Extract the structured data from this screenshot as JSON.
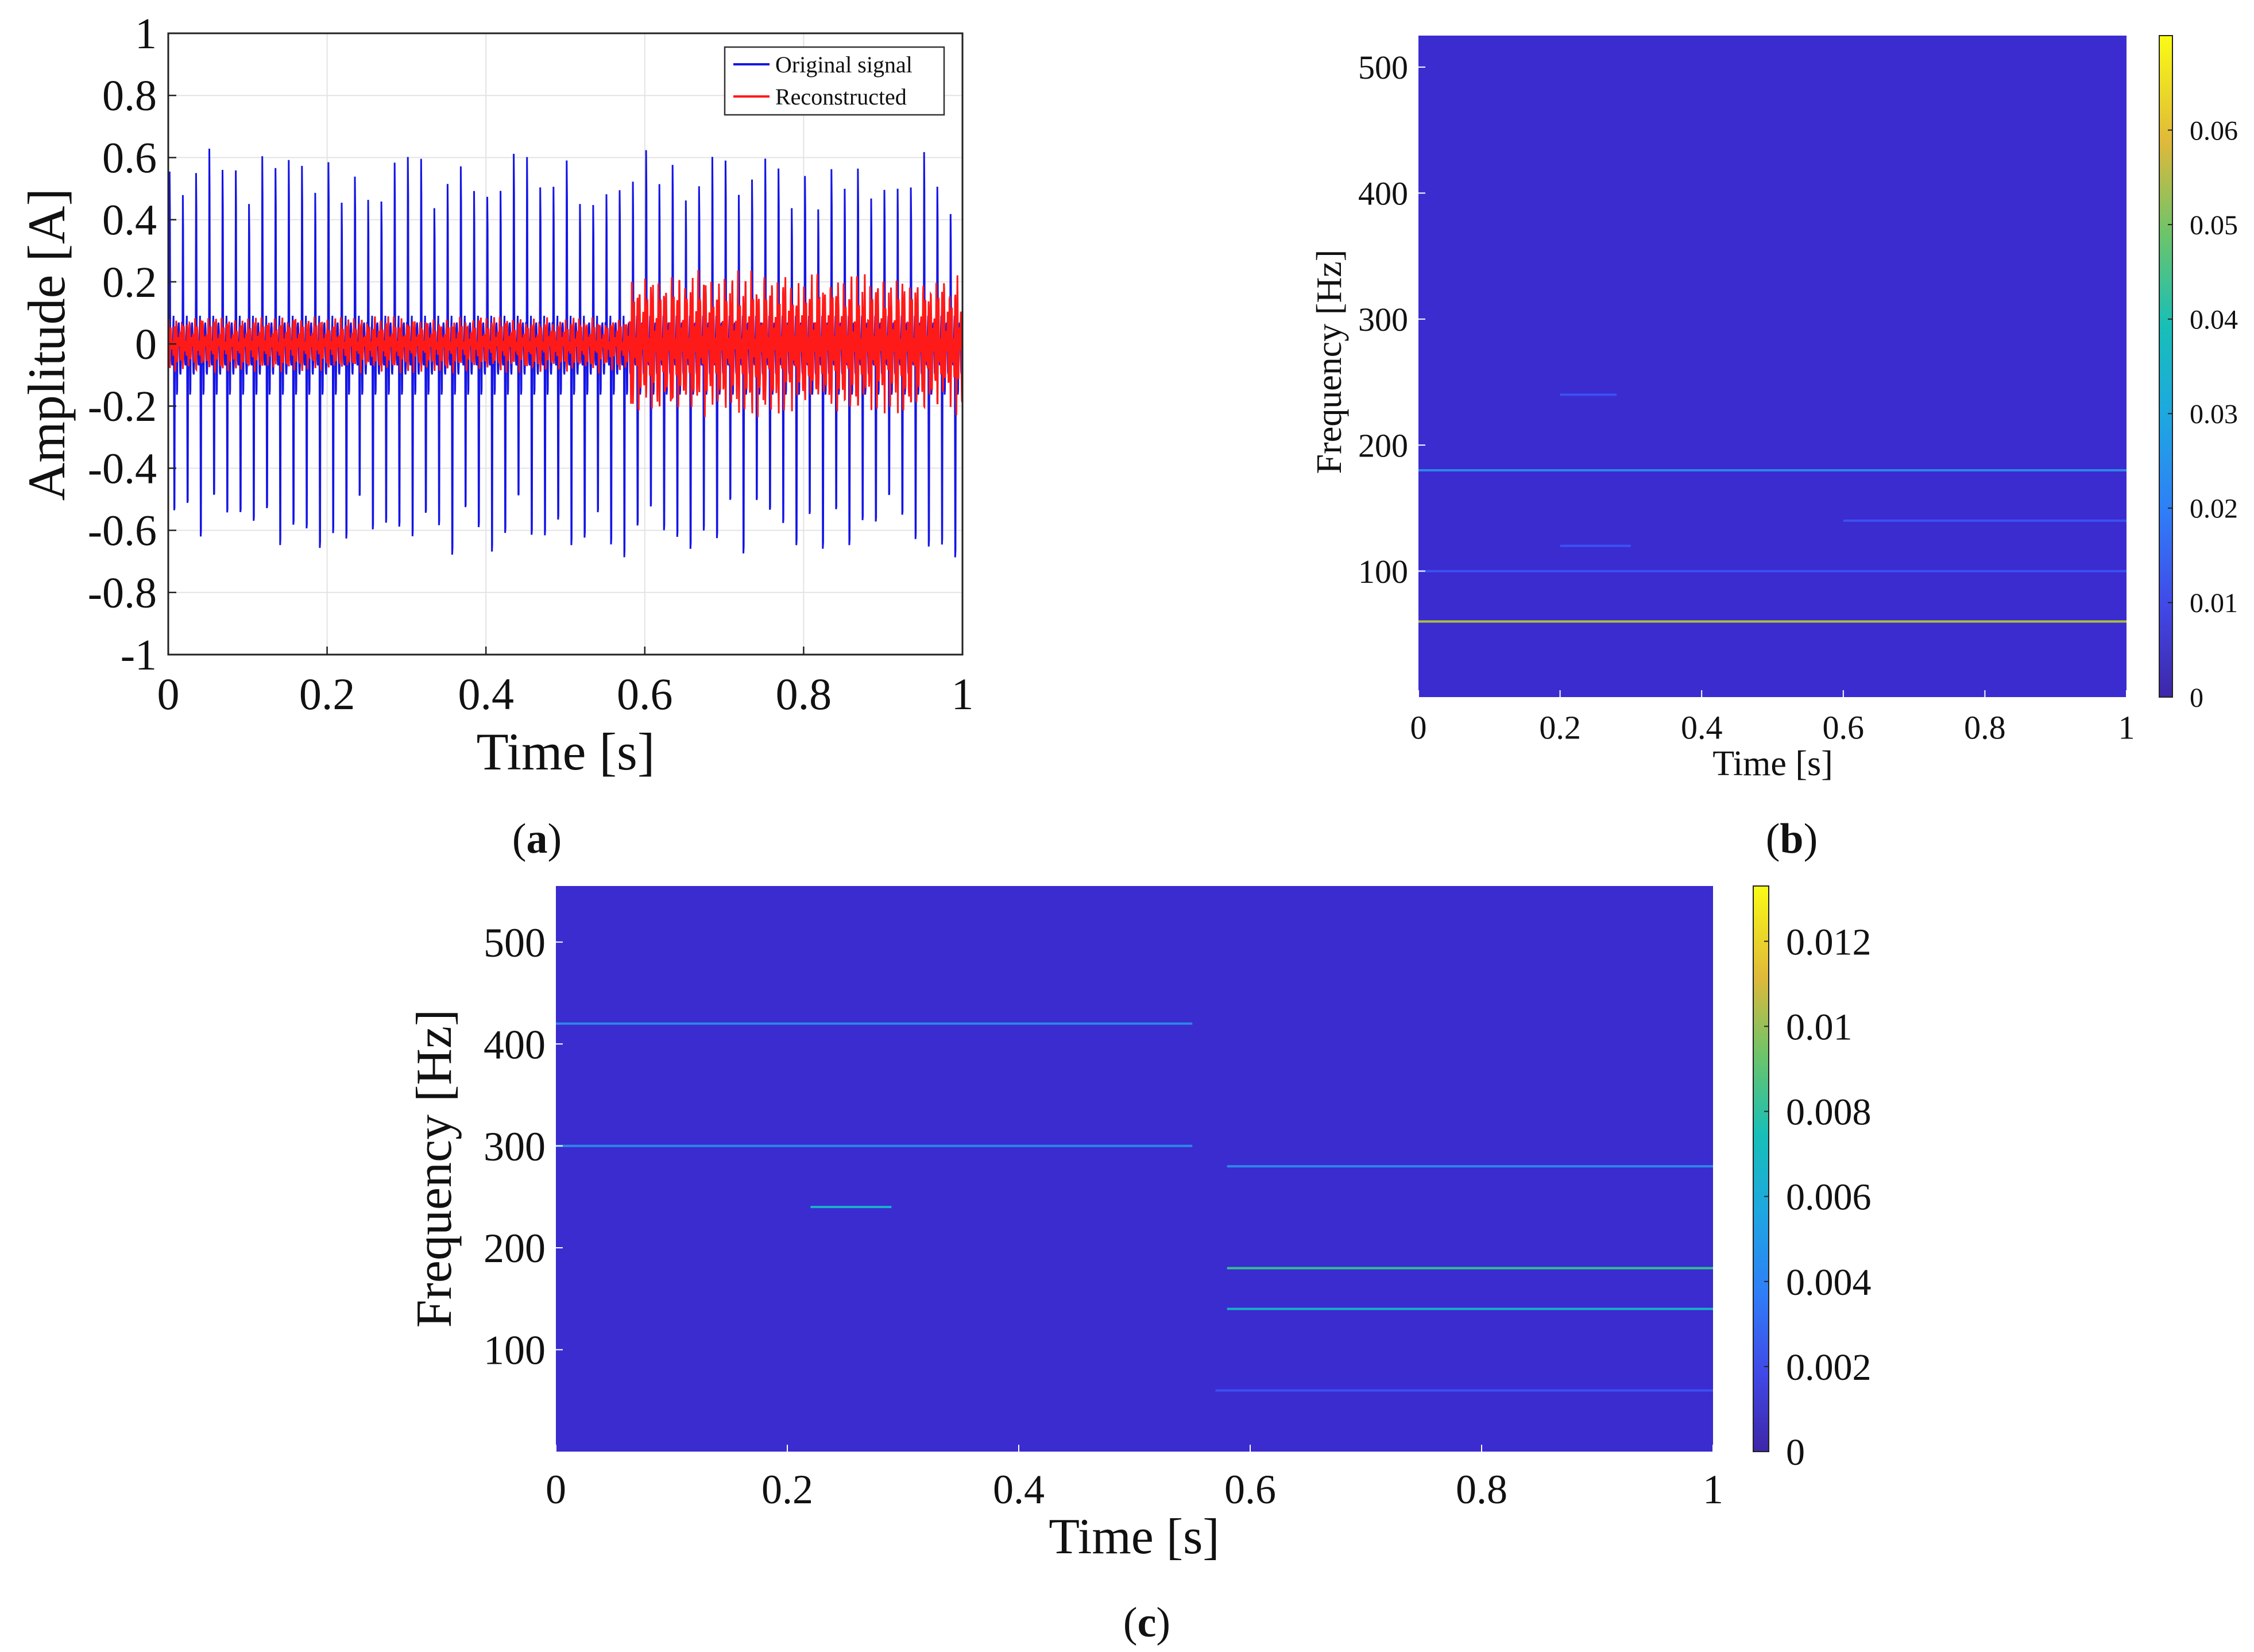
{
  "colors": {
    "original": "#1515e6",
    "reconstructed": "#ff1a1a",
    "spec_bg": "#3a2ccf",
    "cmap": [
      "#3e26a8",
      "#3d50f3",
      "#2d87e8",
      "#17b1c9",
      "#33c08e",
      "#aebe3a",
      "#f9bd3d",
      "#f9fb15"
    ]
  },
  "chart_data": [
    {
      "type": "line",
      "panel_label": "a",
      "xlabel": "Time [s]",
      "ylabel": "Amplitude [A]",
      "xlim": [
        0,
        1
      ],
      "ylim": [
        -1,
        1
      ],
      "xticks": [
        "0",
        "0.2",
        "0.4",
        "0.6",
        "0.8",
        "1"
      ],
      "yticks": [
        "-1",
        "-0.8",
        "-0.6",
        "-0.4",
        "-0.2",
        "0",
        "0.2",
        "0.4",
        "0.6",
        "0.8",
        "1"
      ],
      "grid": true,
      "legend_position": "top-right",
      "series": [
        {
          "name": "Original signal",
          "color": "#1515e6",
          "peak_amplitude": 0.7,
          "trough_amplitude": -0.8,
          "pulses": 60
        },
        {
          "name": "Reconstructed",
          "color": "#ff1a1a",
          "amplitude_before_0.58s": 0.1,
          "amplitude_after_0.58s": 0.25
        }
      ]
    },
    {
      "type": "heatmap",
      "panel_label": "b",
      "xlabel": "Time [s]",
      "ylabel": "Frequency [Hz]",
      "xlim": [
        0,
        1
      ],
      "ylim": [
        0,
        525
      ],
      "xticks": [
        "0",
        "0.2",
        "0.4",
        "0.6",
        "0.8",
        "1"
      ],
      "yticks": [
        "100",
        "200",
        "300",
        "400",
        "500"
      ],
      "colorbar_ticks": [
        "0",
        "0.01",
        "0.02",
        "0.03",
        "0.04",
        "0.05",
        "0.06"
      ],
      "colorbar_max": 0.07,
      "bands": [
        {
          "freq": 60,
          "t0": 0,
          "t1": 1,
          "intensity": 0.045
        },
        {
          "freq": 180,
          "t0": 0,
          "t1": 1,
          "intensity": 0.02
        },
        {
          "freq": 140,
          "t0": 0.6,
          "t1": 1,
          "intensity": 0.008
        },
        {
          "freq": 100,
          "t0": 0,
          "t1": 1,
          "intensity": 0.006
        },
        {
          "freq": 120,
          "t0": 0.2,
          "t1": 0.3,
          "intensity": 0.008
        },
        {
          "freq": 240,
          "t0": 0.2,
          "t1": 0.28,
          "intensity": 0.005
        }
      ]
    },
    {
      "type": "heatmap",
      "panel_label": "c",
      "xlabel": "Time [s]",
      "ylabel": "Frequency [Hz]",
      "xlim": [
        0,
        1
      ],
      "ylim": [
        0,
        555
      ],
      "xticks": [
        "0",
        "0.2",
        "0.4",
        "0.6",
        "0.8",
        "1"
      ],
      "yticks": [
        "100",
        "200",
        "300",
        "400",
        "500"
      ],
      "colorbar_ticks": [
        "0",
        "0.002",
        "0.004",
        "0.006",
        "0.008",
        "0.01",
        "0.012"
      ],
      "colorbar_max": 0.0133,
      "bands": [
        {
          "freq": 300,
          "t0": 0,
          "t1": 0.55,
          "intensity": 0.004
        },
        {
          "freq": 420,
          "t0": 0,
          "t1": 0.55,
          "intensity": 0.004
        },
        {
          "freq": 240,
          "t0": 0.22,
          "t1": 0.29,
          "intensity": 0.005
        },
        {
          "freq": 180,
          "t0": 0.58,
          "t1": 1,
          "intensity": 0.008
        },
        {
          "freq": 140,
          "t0": 0.58,
          "t1": 1,
          "intensity": 0.006
        },
        {
          "freq": 280,
          "t0": 0.58,
          "t1": 1,
          "intensity": 0.004
        },
        {
          "freq": 60,
          "t0": 0.57,
          "t1": 1,
          "intensity": 0.0025
        }
      ]
    }
  ]
}
